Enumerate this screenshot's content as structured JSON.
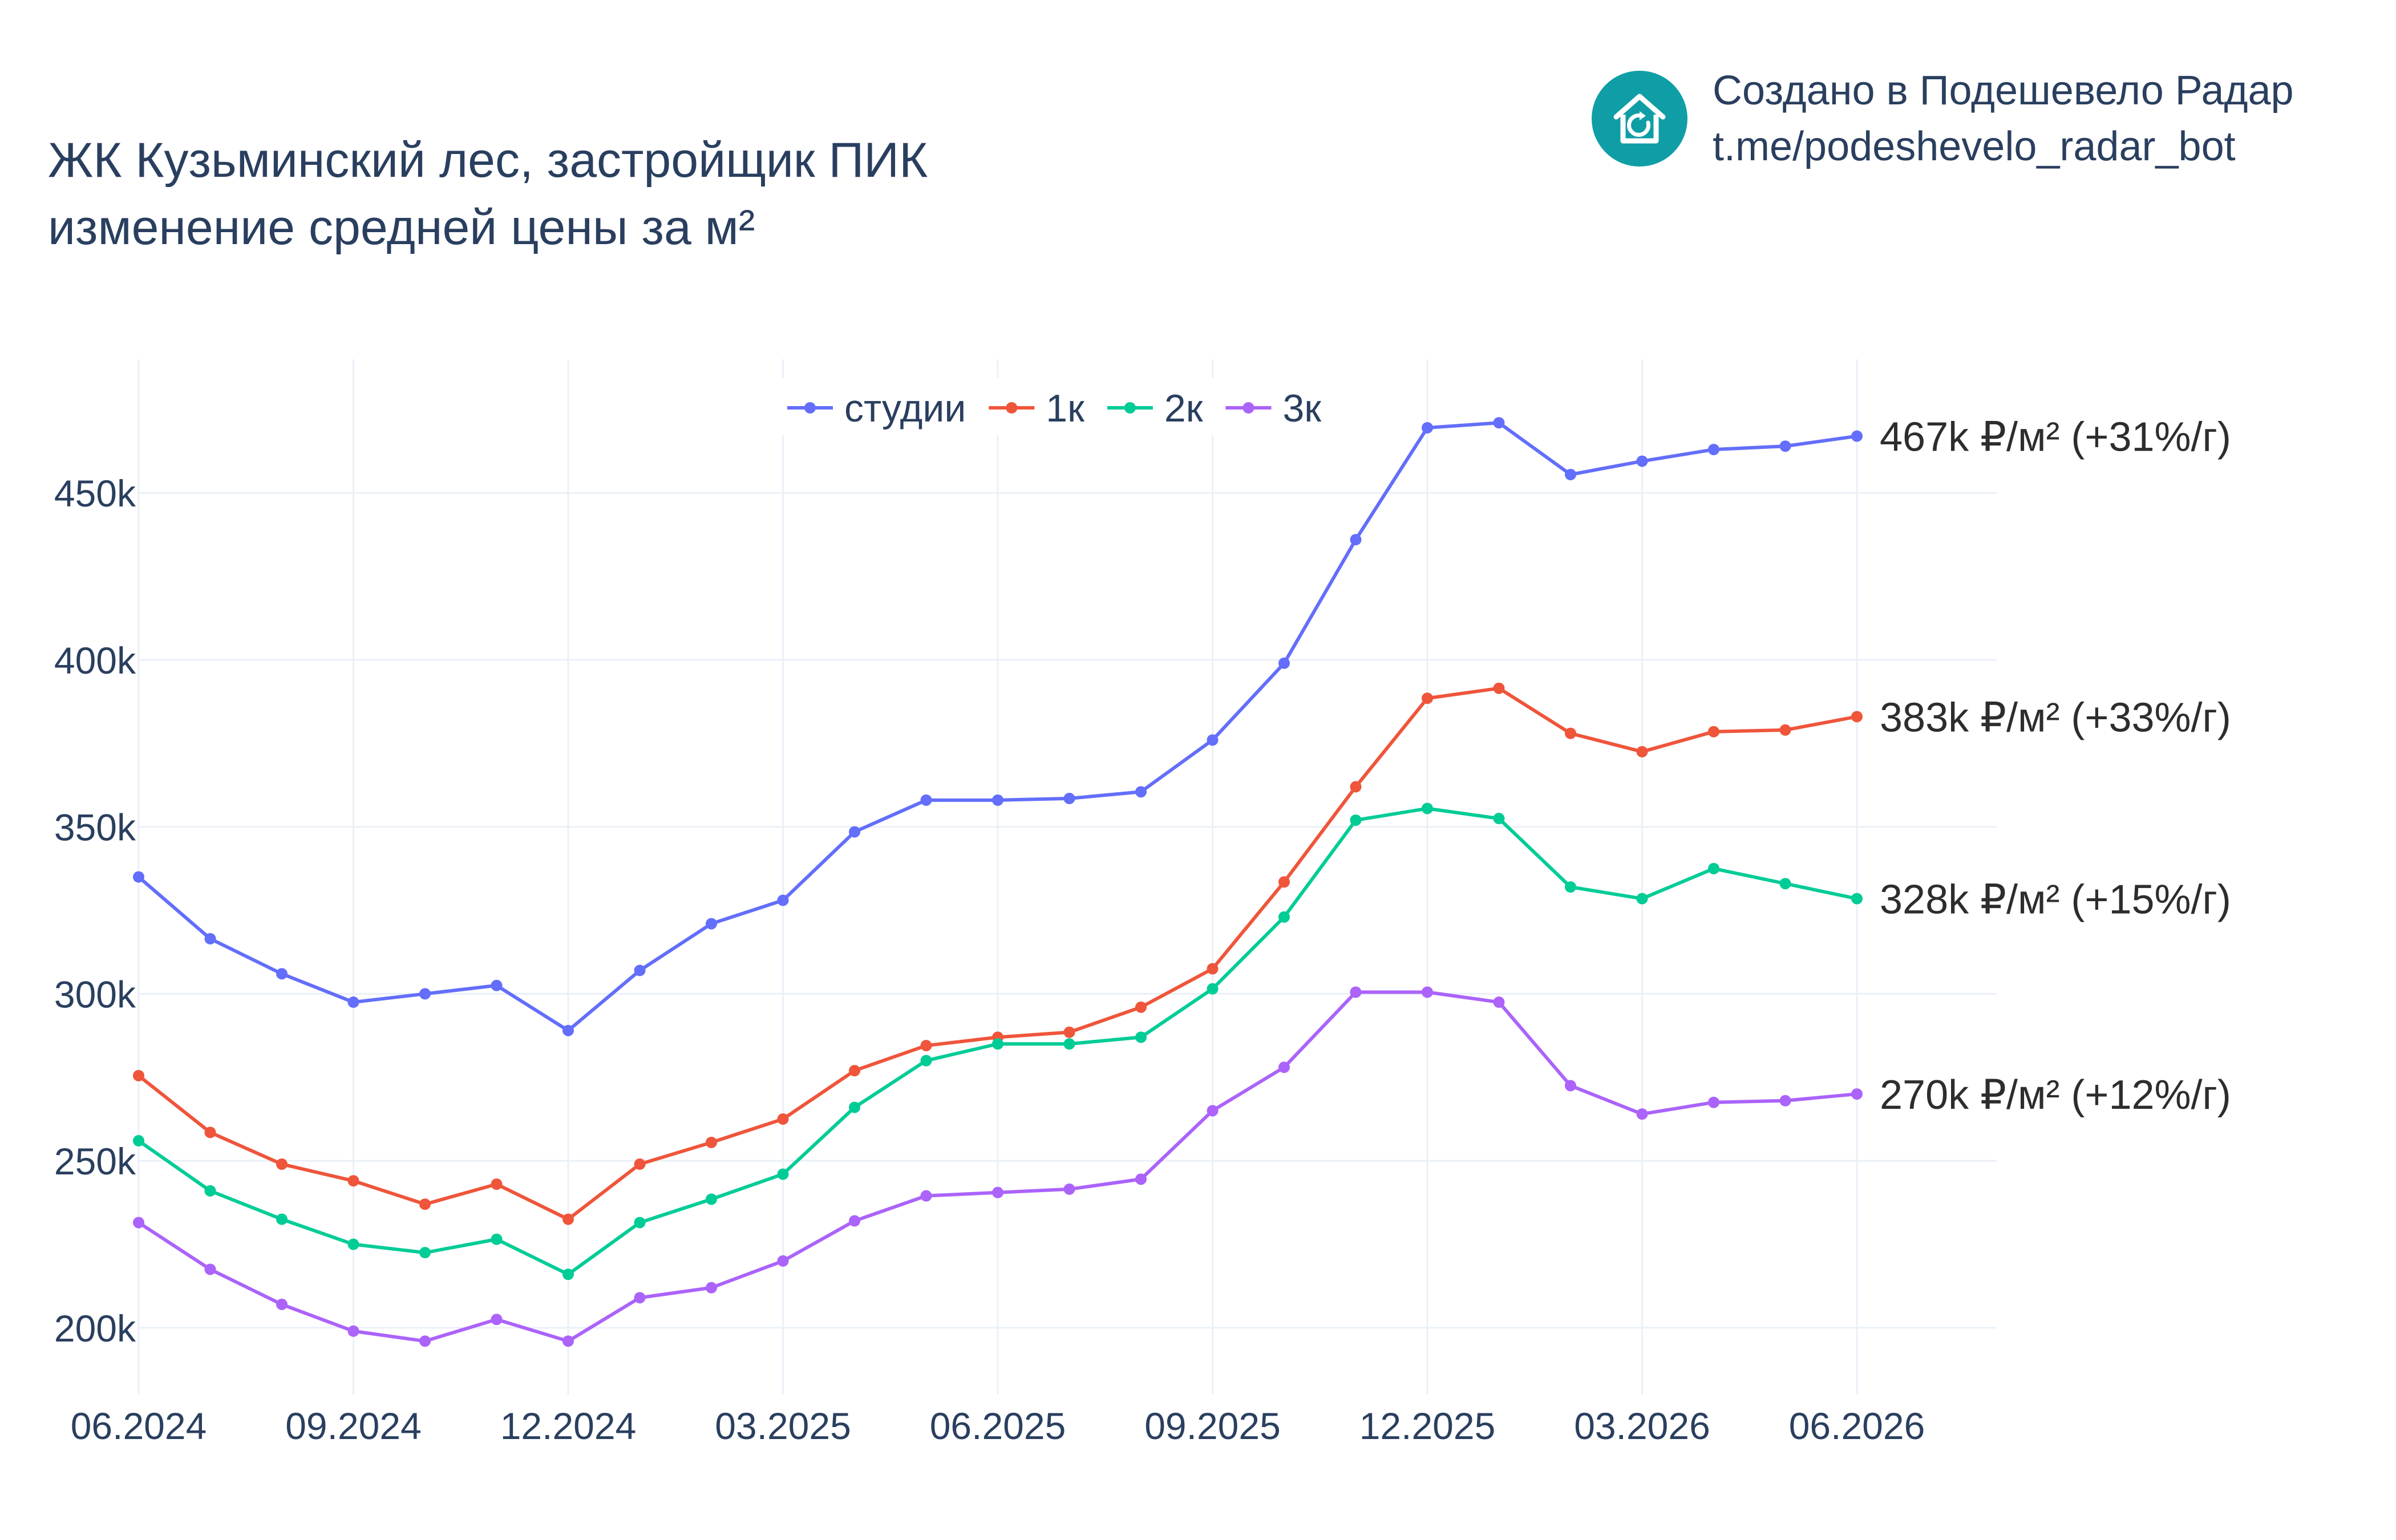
{
  "title": {
    "line1": "ЖК Кузьминский лес, застройщик ПИК",
    "line2": "изменение средней цены за м²"
  },
  "brand": {
    "line1": "Создано в Подешевело Радар",
    "line2": "t.me/podeshevelo_radar_bot",
    "logo_icon": "house-refresh-icon",
    "logo_color": "#0f9ea5"
  },
  "chart_data": {
    "type": "line",
    "x": [
      "06.2024",
      "07.2024",
      "08.2024",
      "09.2024",
      "10.2024",
      "11.2024",
      "12.2024",
      "01.2025",
      "02.2025",
      "03.2025",
      "04.2025",
      "05.2025",
      "06.2025",
      "07.2025",
      "08.2025",
      "09.2025",
      "10.2025",
      "11.2025",
      "12.2025",
      "01.2026",
      "02.2026",
      "03.2026",
      "04.2026",
      "05.2026",
      "06.2026"
    ],
    "x_ticks": [
      "06.2024",
      "09.2024",
      "12.2024",
      "03.2025",
      "06.2025",
      "09.2025",
      "12.2025",
      "03.2026",
      "06.2026"
    ],
    "y_ticks": [
      "200k",
      "250k",
      "300k",
      "350k",
      "400k",
      "450k"
    ],
    "y_tick_values": [
      200000,
      250000,
      300000,
      350000,
      400000,
      450000
    ],
    "ylim": [
      180000,
      490000
    ],
    "grid": true,
    "legend_position": "top-center",
    "series": [
      {
        "name": "студии",
        "color": "#636efa",
        "values": [
          335000,
          316500,
          306000,
          297500,
          300000,
          302500,
          289000,
          307000,
          321000,
          328000,
          348500,
          358000,
          358000,
          358500,
          360500,
          376000,
          399000,
          436000,
          469500,
          471000,
          455500,
          459500,
          463000,
          464000,
          467000
        ],
        "end_label": "467k ₽/м² (+31%/г)"
      },
      {
        "name": "1к",
        "color": "#ef553b",
        "values": [
          275500,
          258500,
          249000,
          244000,
          237000,
          243000,
          232500,
          249000,
          255500,
          262500,
          277000,
          284500,
          287000,
          288500,
          296000,
          307500,
          333500,
          362000,
          388500,
          391500,
          378000,
          372500,
          378500,
          379000,
          383000
        ],
        "end_label": "383k ₽/м² (+33%/г)"
      },
      {
        "name": "2к",
        "color": "#00cc96",
        "values": [
          256000,
          241000,
          232500,
          225000,
          222500,
          226500,
          216000,
          231500,
          238500,
          246000,
          266000,
          280000,
          285000,
          285000,
          287000,
          301500,
          323000,
          352000,
          355500,
          352500,
          332000,
          328500,
          337500,
          333000,
          328500
        ],
        "end_label": "328k ₽/м² (+15%/г)"
      },
      {
        "name": "3к",
        "color": "#ab63fa",
        "values": [
          231500,
          217500,
          207000,
          199000,
          196000,
          202500,
          196000,
          209000,
          212000,
          220000,
          232000,
          239500,
          240500,
          241500,
          244500,
          265000,
          278000,
          300500,
          300500,
          297500,
          272500,
          264000,
          267500,
          268000,
          270000
        ],
        "end_label": "270k ₽/м² (+12%/г)"
      }
    ]
  }
}
